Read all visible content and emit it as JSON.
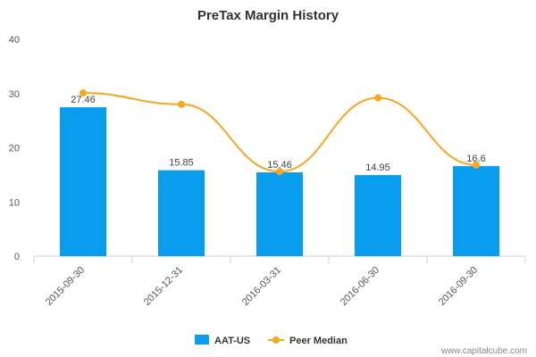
{
  "chart_data": {
    "type": "bar",
    "title": "PreTax Margin History",
    "categories": [
      "2015-09-30",
      "2015-12-31",
      "2016-03-31",
      "2016-06-30",
      "2016-09-30"
    ],
    "series": [
      {
        "name": "AAT-US",
        "type": "bar",
        "color": "#0a9ded",
        "values": [
          27.46,
          15.85,
          15.46,
          14.95,
          16.6
        ],
        "labels": [
          "27.46",
          "15.85",
          "15.46",
          "14.95",
          "16.6"
        ]
      },
      {
        "name": "Peer Median",
        "type": "line",
        "smooth": true,
        "color": "#f5a623",
        "values": [
          30.1,
          28.0,
          15.6,
          29.2,
          16.8
        ]
      }
    ],
    "ylim": [
      0,
      40
    ],
    "yticks": [
      "0",
      "10",
      "20",
      "30",
      "40"
    ],
    "grid": false,
    "legend": "bottom-center"
  },
  "credit": "www.capitalcube.com"
}
